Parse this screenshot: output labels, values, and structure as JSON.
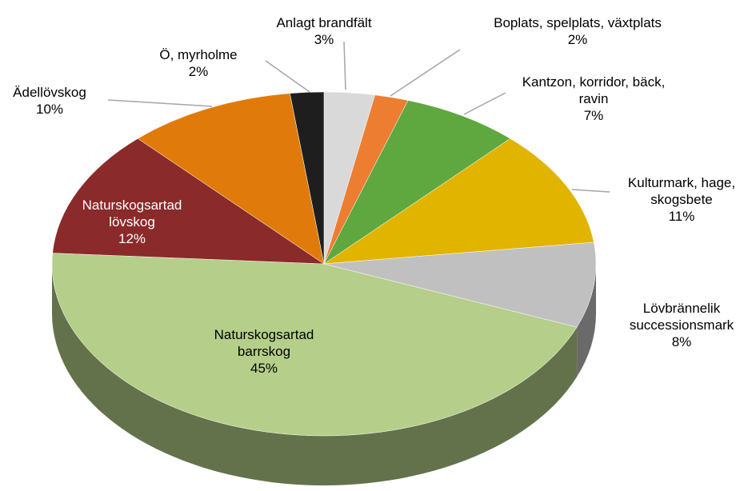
{
  "chart_data": {
    "type": "pie",
    "categories": [
      "Anlagt brandfält",
      "Boplats, spelplats, växtplats",
      "Kantzon, korridor, bäck, ravin",
      "Kulturmark, hage, skogsbete",
      "Lövbrännelik successionsmark",
      "Naturskogsartad barrskog",
      "Naturskogsartad lövskog",
      "Ädellövskog",
      "Ö, myrholme"
    ],
    "values": [
      3,
      2,
      7,
      11,
      8,
      45,
      12,
      10,
      2
    ],
    "value_labels": [
      "3%",
      "2%",
      "7%",
      "11%",
      "8%",
      "45%",
      "12%",
      "10%",
      "2%"
    ],
    "colors": [
      "#d9d9d9",
      "#ed7d31",
      "#5fa83f",
      "#e1b400",
      "#c0c0c0",
      "#b5cf8a",
      "#8b2a2a",
      "#e07b0b",
      "#1e1e1e"
    ]
  }
}
